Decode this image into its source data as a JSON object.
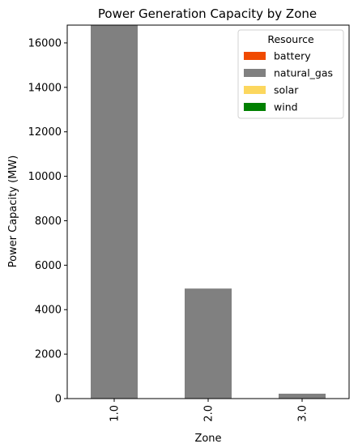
{
  "chart_data": {
    "type": "bar",
    "stacked": true,
    "title": "Power Generation Capacity by Zone",
    "xlabel": "Zone",
    "ylabel": "Power Capacity (MW)",
    "categories": [
      "1.0",
      "2.0",
      "3.0"
    ],
    "ylim": [
      0,
      16800
    ],
    "yticks": [
      0,
      2000,
      4000,
      6000,
      8000,
      10000,
      12000,
      14000,
      16000
    ],
    "legend": {
      "title": "Resource",
      "position": "top-right"
    },
    "series": [
      {
        "name": "battery",
        "color": "#f04a00",
        "values": [
          0,
          0,
          0
        ]
      },
      {
        "name": "natural_gas",
        "color": "#808080",
        "values": [
          16800,
          4950,
          220
        ]
      },
      {
        "name": "solar",
        "color": "#fcd75e",
        "values": [
          0,
          0,
          0
        ]
      },
      {
        "name": "wind",
        "color": "#008000",
        "values": [
          0,
          0,
          0
        ]
      }
    ]
  }
}
